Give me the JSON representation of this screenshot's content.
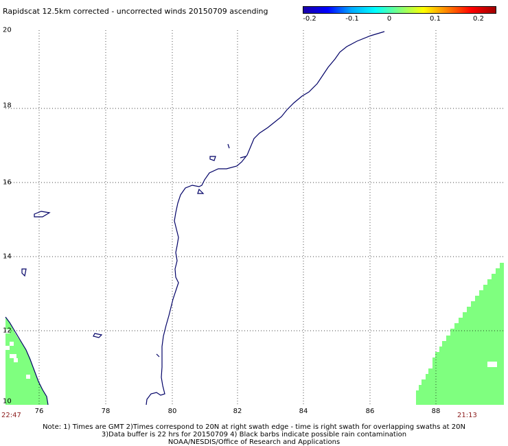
{
  "title": "Rapidscat 12.5km corrected - uncorrected winds 20150709 ascending",
  "colorbar": {
    "ticks": [
      "-0.2",
      "-0.1",
      "0",
      "0.1",
      "0.2"
    ]
  },
  "y_axis": {
    "labels": [
      "20",
      "18",
      "16",
      "14",
      "12",
      "10"
    ]
  },
  "x_axis": {
    "labels": [
      "76",
      "78",
      "80",
      "82",
      "84",
      "86",
      "88"
    ]
  },
  "times": {
    "left": "22:47",
    "right": "21:13"
  },
  "notes": [
    "Note: 1) Times are GMT 2)Times correspond to 20N at right swath edge - time is right swath for overlapping swaths at 20N",
    "3)Data buffer is 22 hrs for 20150709 4) Black barbs indicate possible rain contamination",
    "NOAA/NESDIS/Office of Research and Applications"
  ],
  "colors": {
    "swath": "#7fff7f",
    "coast": "#000066",
    "grid": "#000000"
  }
}
